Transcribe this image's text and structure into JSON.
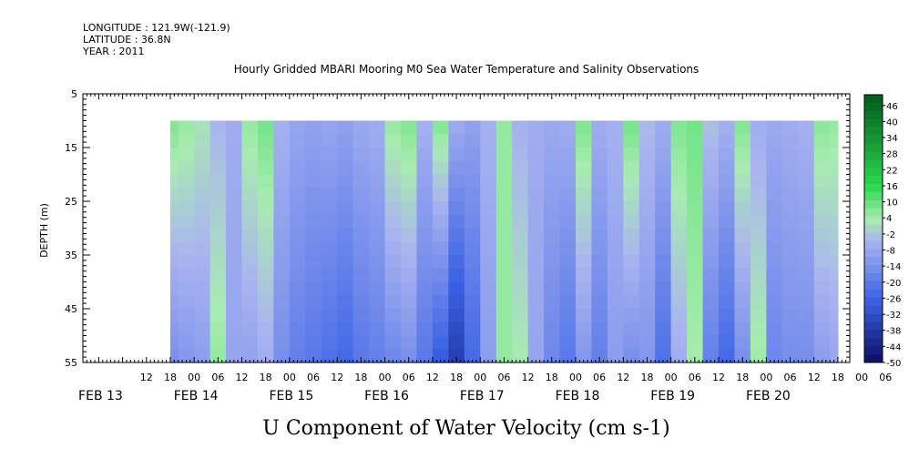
{
  "chart_data": {
    "type": "heatmap",
    "header": {
      "longitude": "LONGITUDE : 121.9W(-121.9)",
      "latitude": "LATITUDE : 36.8N",
      "year": "YEAR : 2011"
    },
    "title": "Hourly Gridded MBARI Mooring M0 Sea Water Temperature and Salinity Observations",
    "xlabel": "U Component of Water Velocity (cm s-1)",
    "ylabel": "DEPTH (m)",
    "y_ticks": [
      "5",
      "15",
      "25",
      "35",
      "45",
      "55"
    ],
    "ylim": [
      5,
      55
    ],
    "y_inverted": true,
    "data_depth_range": [
      10,
      55
    ],
    "hour_ticks": [
      "12",
      "18",
      "00",
      "06",
      "12",
      "18",
      "00",
      "06",
      "12",
      "18",
      "00",
      "06",
      "12",
      "18",
      "00",
      "06",
      "12",
      "18",
      "00",
      "06",
      "12",
      "18",
      "00",
      "06",
      "12",
      "18",
      "00",
      "06",
      "12",
      "18",
      "00",
      "06"
    ],
    "date_labels": [
      "FEB 13",
      "FEB 14",
      "FEB 15",
      "FEB 16",
      "FEB 17",
      "FEB 18",
      "FEB 19",
      "FEB 20"
    ],
    "time_range_hours": [
      -4,
      189
    ],
    "data_time_range_hours": [
      18,
      186
    ],
    "colorbar": {
      "labels": [
        "46",
        "40",
        "34",
        "28",
        "22",
        "16",
        "10",
        "4",
        "-2",
        "-8",
        "-14",
        "-20",
        "-26",
        "-32",
        "-38",
        "-44",
        "-50"
      ],
      "range": [
        -50,
        50
      ],
      "step": 3,
      "colors": {
        "strong_positive": "#005a1e",
        "positive": "#2bd84f",
        "weak_positive": "#a8ecb0",
        "weak_negative": "#aab4f0",
        "negative": "#3a62e6",
        "strong_negative": "#0a0a5a"
      }
    },
    "velocity_profile": {
      "time_hours": [
        18,
        22,
        26,
        30,
        34,
        38,
        42,
        46,
        50,
        54,
        58,
        62,
        66,
        70,
        74,
        78,
        82,
        86,
        90,
        94,
        98,
        102,
        106,
        110,
        114,
        118,
        122,
        126,
        130,
        134,
        138,
        142,
        146,
        150,
        154,
        158,
        162,
        166,
        170,
        174,
        178,
        182,
        186
      ],
      "surface_cm_s": [
        8,
        6,
        3,
        -4,
        -6,
        6,
        9,
        -5,
        -8,
        -9,
        -8,
        -9,
        -7,
        -6,
        6,
        8,
        -5,
        8,
        -6,
        -9,
        -5,
        6,
        -5,
        -6,
        -7,
        -6,
        8,
        -6,
        -5,
        9,
        -3,
        -6,
        8,
        9,
        -2,
        -5,
        8,
        -6,
        -7,
        -6,
        -5,
        7,
        6
      ],
      "bottom_cm_s": [
        -14,
        -12,
        -10,
        6,
        -8,
        -9,
        -6,
        -14,
        -18,
        -20,
        -22,
        -24,
        -20,
        -18,
        -16,
        -14,
        -20,
        -28,
        -36,
        -24,
        -10,
        6,
        4,
        -8,
        -16,
        -20,
        -12,
        -18,
        -10,
        -14,
        -12,
        -22,
        -6,
        4,
        -18,
        -24,
        -14,
        5,
        -16,
        -14,
        -14,
        -10,
        -8
      ]
    }
  }
}
